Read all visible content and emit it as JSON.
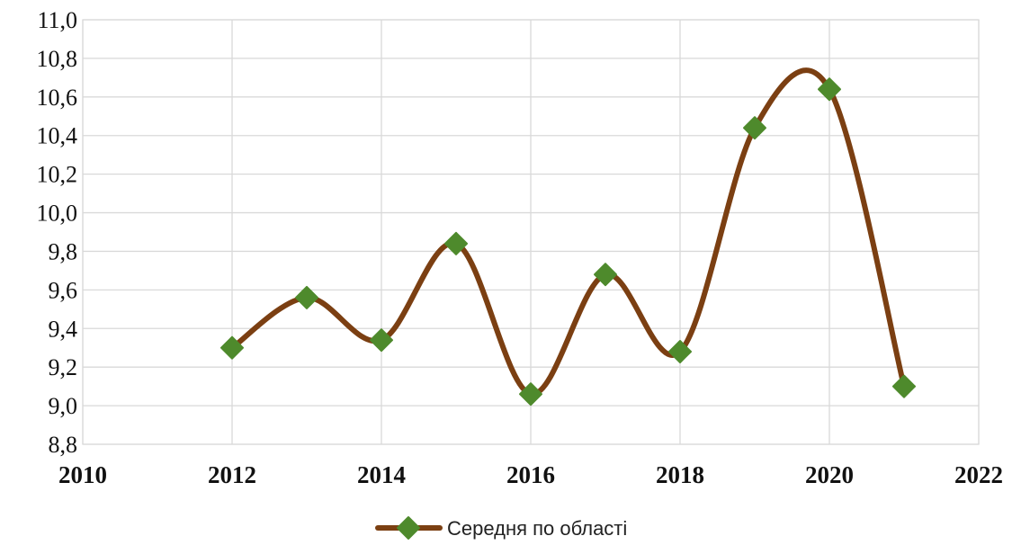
{
  "chart_data": {
    "type": "line",
    "smooth": true,
    "title": "",
    "xlabel": "",
    "ylabel": "",
    "xlim": [
      2010,
      2022
    ],
    "ylim": [
      8.8,
      11.0
    ],
    "x_ticks": [
      "2010",
      "2012",
      "2014",
      "2016",
      "2018",
      "2020",
      "2022"
    ],
    "y_ticks": [
      "8,8",
      "9,0",
      "9,2",
      "9,4",
      "9,6",
      "9,8",
      "10,0",
      "10,2",
      "10,4",
      "10,6",
      "10,8",
      "11,0"
    ],
    "grid": true,
    "legend_position": "bottom",
    "series": [
      {
        "name": "Середня по області",
        "line_color": "#7B3F12",
        "marker_color": "#4E8A2C",
        "marker": "diamond",
        "x": [
          2012,
          2013,
          2014,
          2015,
          2016,
          2017,
          2018,
          2019,
          2020,
          2021
        ],
        "y": [
          9.3,
          9.56,
          9.34,
          9.84,
          9.06,
          9.68,
          9.28,
          10.44,
          10.64,
          9.1
        ]
      }
    ]
  }
}
